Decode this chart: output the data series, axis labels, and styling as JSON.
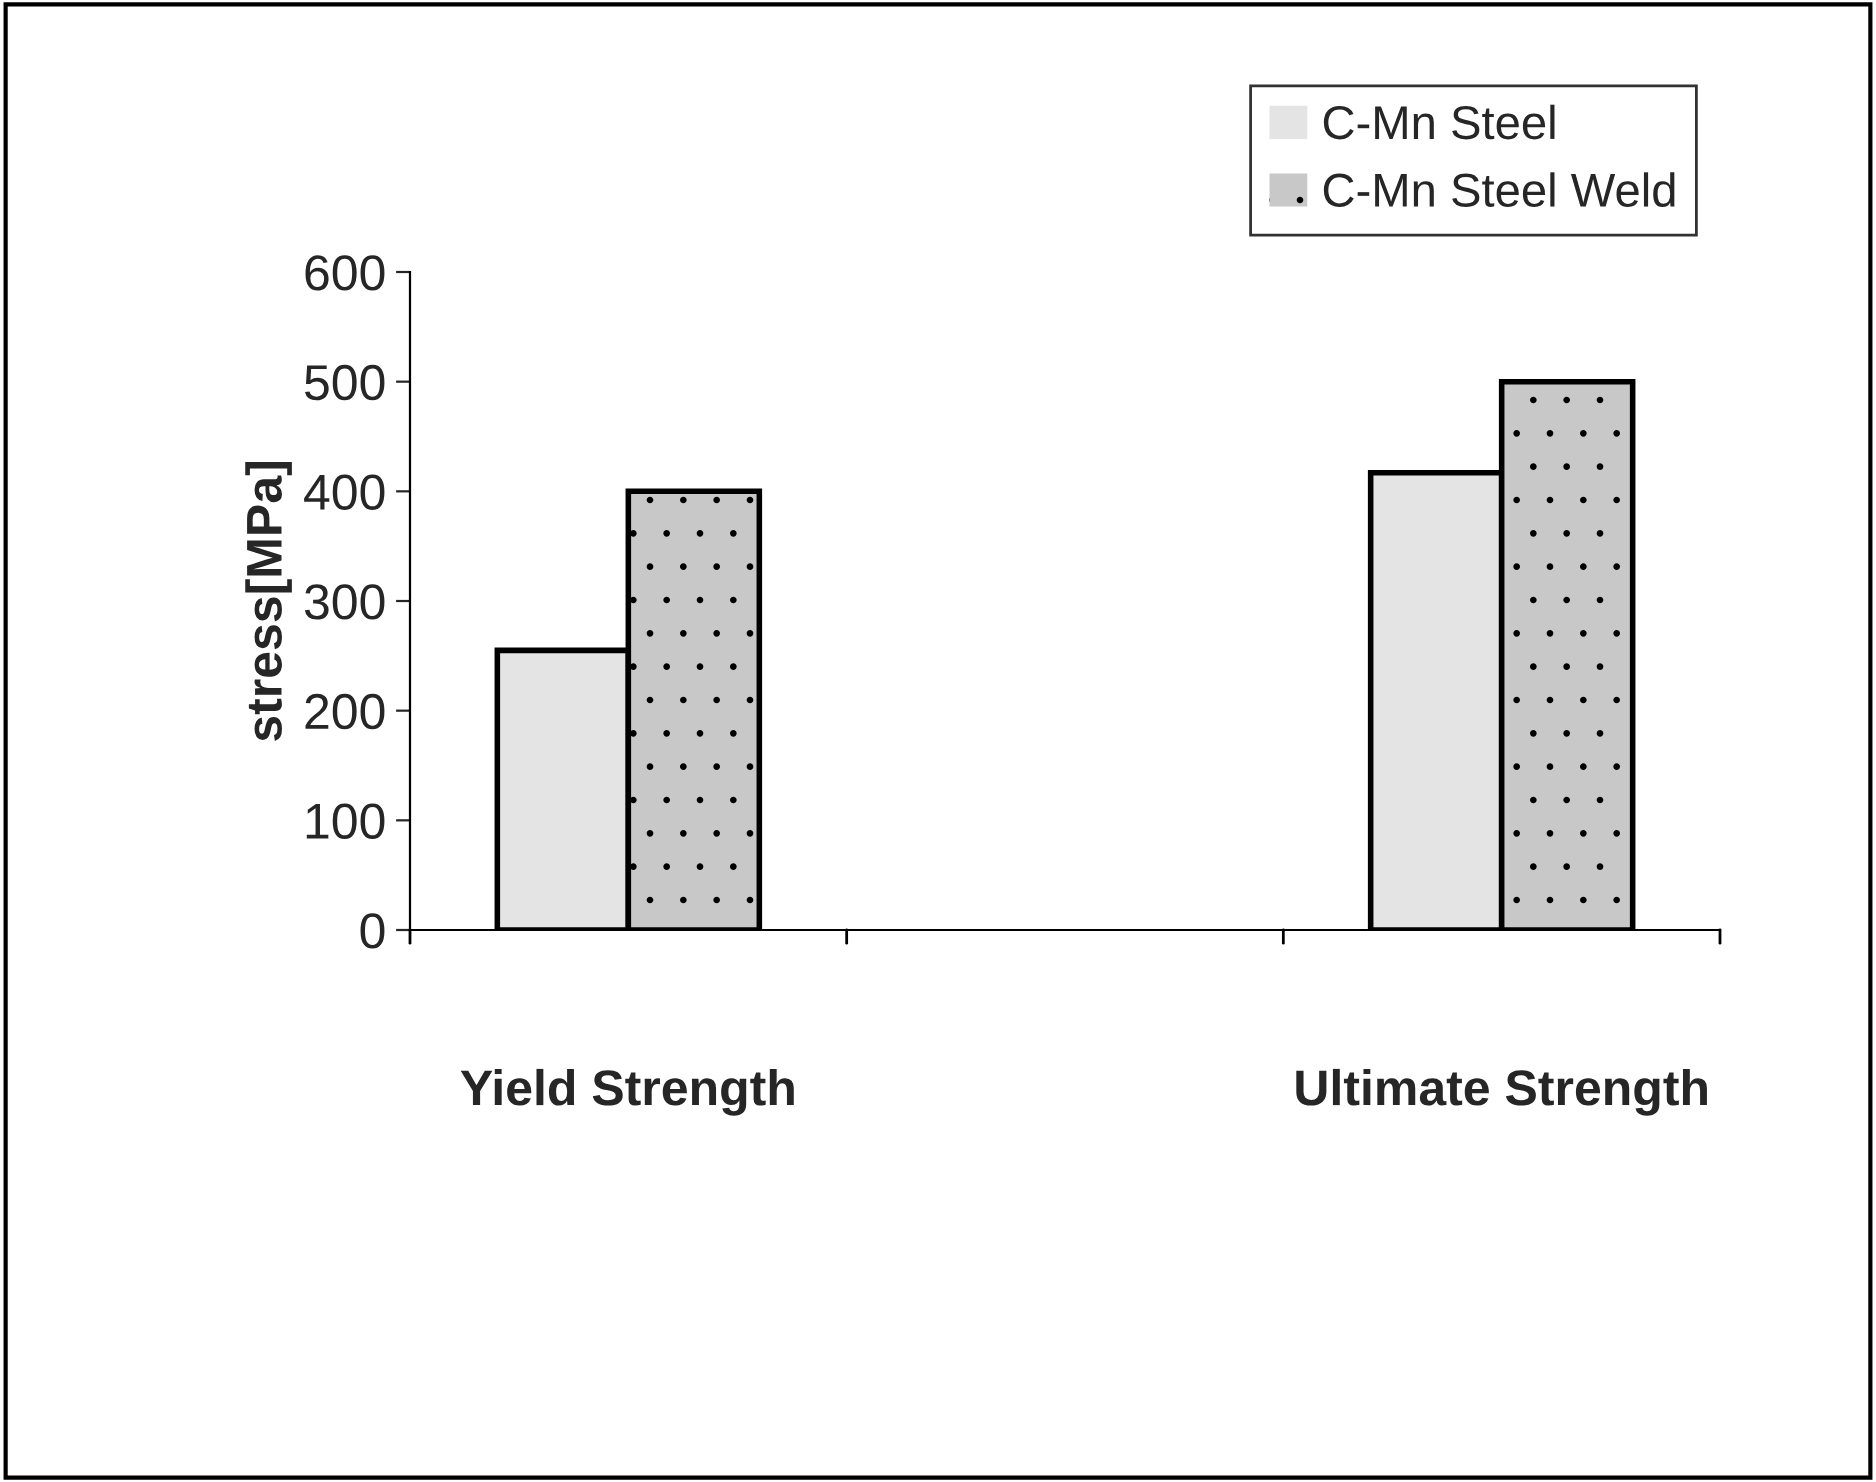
{
  "chart_data": {
    "type": "bar",
    "ylabel": "stress[MPa]",
    "categories": [
      "Yield Strength",
      null,
      "Ultimate Strength"
    ],
    "series": [
      {
        "name": "C-Mn Steel",
        "color": "#e4e4e4",
        "values": [
          255,
          null,
          417
        ]
      },
      {
        "name": "C-Mn Steel Weld",
        "color": "#c8c8c8",
        "values": [
          400,
          null,
          500
        ]
      }
    ],
    "ylim": [
      0,
      600
    ],
    "yticks": [
      0,
      100,
      200,
      300,
      400,
      500,
      600
    ],
    "grid": false,
    "legend": "top right"
  }
}
